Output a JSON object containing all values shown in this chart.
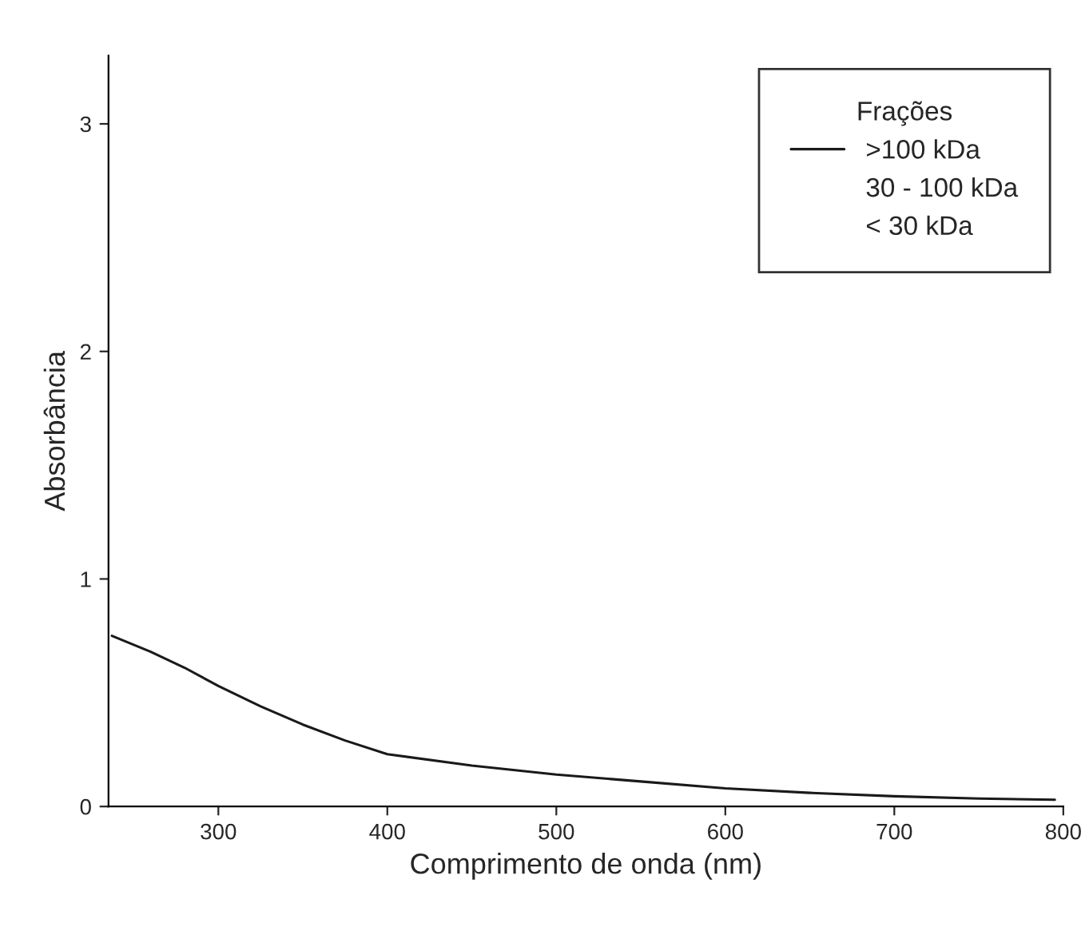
{
  "chart_data": {
    "type": "line",
    "xlabel": "Comprimento de onda (nm)",
    "ylabel": "Absorbância",
    "legend_title": "Frações",
    "x": [
      237,
      260,
      280,
      300,
      325,
      350,
      375,
      400,
      450,
      500,
      550,
      600,
      650,
      700,
      750,
      795
    ],
    "series": [
      {
        "name": ">100 kDa",
        "color": "#1a1a1a",
        "values": [
          0.75,
          0.68,
          0.61,
          0.53,
          0.44,
          0.36,
          0.29,
          0.23,
          0.18,
          0.14,
          0.11,
          0.08,
          0.06,
          0.045,
          0.035,
          0.03
        ]
      }
    ],
    "annotations": [
      "30 - 100 kDa",
      "< 30 kDa"
    ],
    "xlim": [
      235,
      800
    ],
    "xticks": [
      300,
      400,
      500,
      600,
      700,
      800
    ],
    "ylim": [
      0,
      3.3
    ],
    "yticks": [
      0,
      1,
      2,
      3
    ],
    "grid": false,
    "legend": "top right",
    "line_style": "solid",
    "marker": "none"
  }
}
